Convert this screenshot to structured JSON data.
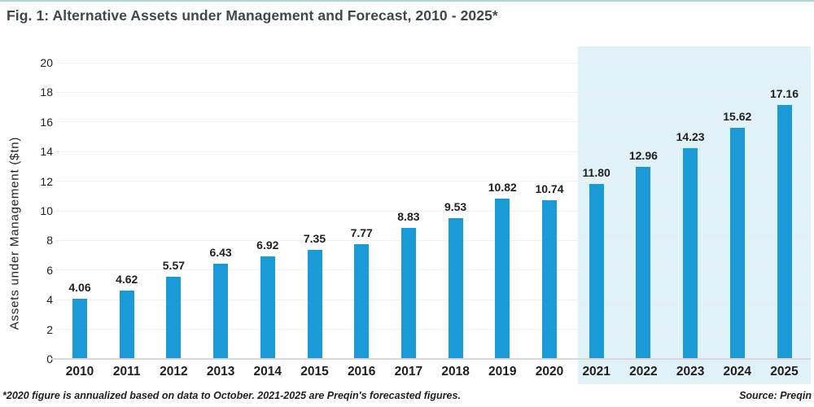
{
  "page": {
    "title": "Fig. 1: Alternative Assets under Management and Forecast, 2010 - 2025*",
    "footnote": "*2020 figure is annualized based on data to October. 2021-2025 are Preqin's forecasted figures.",
    "source": "Source: Preqin"
  },
  "chart_data": {
    "type": "bar",
    "title": "Fig. 1: Alternative Assets under Management and Forecast, 2010 - 2025*",
    "categories": [
      "2010",
      "2011",
      "2012",
      "2013",
      "2014",
      "2015",
      "2016",
      "2017",
      "2018",
      "2019",
      "2020",
      "2021",
      "2022",
      "2023",
      "2024",
      "2025"
    ],
    "values": [
      4.06,
      4.62,
      5.57,
      6.43,
      6.92,
      7.35,
      7.77,
      8.83,
      9.53,
      10.82,
      10.74,
      11.8,
      12.96,
      14.23,
      15.62,
      17.16
    ],
    "xlabel": "",
    "ylabel": "Assets under Management ($tn)",
    "ylim": [
      0,
      20
    ],
    "ytick_step": 2,
    "grid": true,
    "legend": "none",
    "value_labels": "above bars, 2 decimal places",
    "bar_color": "#1a9ad6",
    "forecast": {
      "categories": [
        "2021",
        "2022",
        "2023",
        "2024",
        "2025"
      ],
      "background_color": "#e0f1f8",
      "note": "2021-2025 shaded as forecast period"
    }
  }
}
